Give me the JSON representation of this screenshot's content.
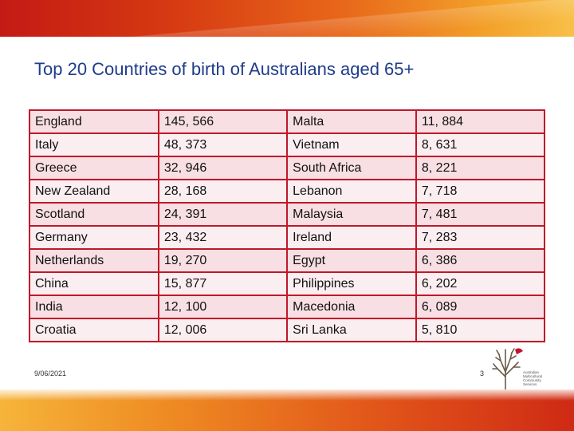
{
  "slide": {
    "title": "Top 20 Countries of birth of Australians aged 65+",
    "date": "9/06/2021",
    "page_number": "3"
  },
  "table": {
    "rows": [
      [
        "England",
        "145, 566",
        "Malta",
        "11, 884"
      ],
      [
        "Italy",
        "48, 373",
        "Vietnam",
        "8, 631"
      ],
      [
        "Greece",
        "32, 946",
        "South Africa",
        "8, 221"
      ],
      [
        "New Zealand",
        "28, 168",
        "Lebanon",
        "7, 718"
      ],
      [
        "Scotland",
        "24, 391",
        "Malaysia",
        "7, 481"
      ],
      [
        "Germany",
        "23, 432",
        "Ireland",
        "7, 283"
      ],
      [
        "Netherlands",
        "19, 270",
        "Egypt",
        "6, 386"
      ],
      [
        "China",
        "15, 877",
        "Philippines",
        "6, 202"
      ],
      [
        "India",
        "12, 100",
        "Macedonia",
        "6, 089"
      ],
      [
        "Croatia",
        "12, 006",
        "Sri Lanka",
        "5, 810"
      ]
    ]
  },
  "logo": {
    "lines": [
      "Australian",
      "Multicultural",
      "Community",
      "Services"
    ],
    "colors": {
      "tree": "#6b5b4b",
      "bird": "#c8102e"
    }
  },
  "colors": {
    "title": "#1f3c8c",
    "table_border": "#c0182a",
    "table_fill": "#f8dfe3"
  }
}
